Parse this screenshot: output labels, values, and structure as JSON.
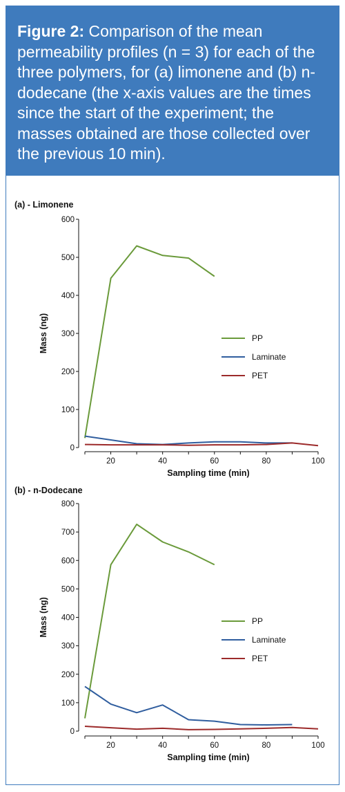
{
  "caption": {
    "lead": "Figure 2:",
    "text": " Comparison of the mean permeability profiles (n = 3) for each of the three polymers, for (a) limonene and (b) n-dodecane (the x-axis values are the times since the start of the experiment; the masses obtained are those collected over the previous 10 min)."
  },
  "colors": {
    "PP": "#6a9a3a",
    "Laminate": "#2f5d9e",
    "PET": "#9c2a2a",
    "caption_bg": "#3f7bbd"
  },
  "chart_data": [
    {
      "type": "line",
      "panel_label": "(a) - Limonene",
      "xlabel": "Sampling time (min)",
      "ylabel": "Mass (ng)",
      "xlim": [
        10,
        100
      ],
      "ylim": [
        0,
        600
      ],
      "xticks": [
        20,
        40,
        60,
        80,
        100
      ],
      "yticks": [
        0,
        100,
        200,
        300,
        400,
        500,
        600
      ],
      "legend_position": "right",
      "series": [
        {
          "name": "PP",
          "x": [
            10,
            20,
            30,
            40,
            50,
            60
          ],
          "values": [
            25,
            445,
            530,
            505,
            498,
            450
          ]
        },
        {
          "name": "Laminate",
          "x": [
            10,
            20,
            30,
            40,
            50,
            60,
            70,
            80,
            90
          ],
          "values": [
            30,
            20,
            10,
            8,
            12,
            15,
            15,
            12,
            12
          ]
        },
        {
          "name": "PET",
          "x": [
            10,
            20,
            30,
            40,
            50,
            60,
            70,
            80,
            90,
            100
          ],
          "values": [
            8,
            7,
            7,
            7,
            6,
            7,
            7,
            8,
            12,
            5
          ]
        }
      ]
    },
    {
      "type": "line",
      "panel_label": "(b) - n-Dodecane",
      "xlabel": "Sampling time (min)",
      "ylabel": "Mass (ng)",
      "xlim": [
        10,
        100
      ],
      "ylim": [
        0,
        800
      ],
      "xticks": [
        20,
        40,
        60,
        80,
        100
      ],
      "yticks": [
        0,
        100,
        200,
        300,
        400,
        500,
        600,
        700,
        800
      ],
      "legend_position": "right",
      "series": [
        {
          "name": "PP",
          "x": [
            10,
            20,
            30,
            40,
            50,
            60
          ],
          "values": [
            45,
            585,
            727,
            665,
            630,
            585
          ]
        },
        {
          "name": "Laminate",
          "x": [
            10,
            20,
            30,
            40,
            50,
            60,
            70,
            80,
            90
          ],
          "values": [
            157,
            95,
            65,
            92,
            40,
            35,
            23,
            22,
            23
          ]
        },
        {
          "name": "PET",
          "x": [
            10,
            20,
            30,
            40,
            50,
            60,
            70,
            80,
            90,
            100
          ],
          "values": [
            17,
            12,
            7,
            10,
            5,
            6,
            8,
            10,
            13,
            8
          ]
        }
      ]
    }
  ]
}
